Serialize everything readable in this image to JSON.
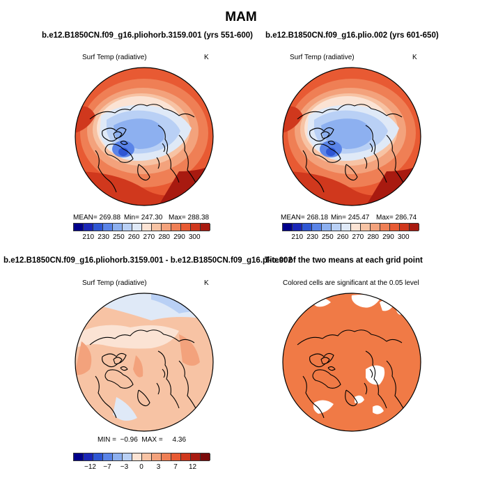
{
  "main_title": "MAM",
  "palette": {
    "cold": [
      "#00008b",
      "#1a26b8",
      "#2e56d4",
      "#5a84e8",
      "#8db0f0",
      "#b9d0f5",
      "#dfe9f7"
    ],
    "warm": [
      "#fbe3d4",
      "#f7c3a4",
      "#f3a27c",
      "#ef7f55",
      "#e85a33",
      "#d0381d",
      "#a81a10",
      "#7a0a0a"
    ],
    "ocean_warm": "#f18459",
    "signif": "#f07a46"
  },
  "chart_data": [
    {
      "type": "heatmap",
      "title": "b.e12.B1850CN.f09_g16.pliohorb.3159.001 (yrs 551-600)",
      "variable": "Surf Temp (radiative)",
      "units": "K",
      "stats": {
        "mean": "MEAN= 269.88",
        "min": "Min= 247.30",
        "max": "Max= 288.38"
      },
      "mean": 269.88,
      "min": 247.3,
      "max": 288.38,
      "colorbar_ticks": [
        "210",
        "230",
        "250",
        "260",
        "270",
        "280",
        "290",
        "300"
      ]
    },
    {
      "type": "heatmap",
      "title": "b.e12.B1850CN.f09_g16.plio.002 (yrs 601-650)",
      "variable": "Surf Temp (radiative)",
      "units": "K",
      "stats": {
        "mean": "MEAN= 268.18",
        "min": "Min= 245.47",
        "max": "Max= 286.74"
      },
      "mean": 268.18,
      "min": 245.47,
      "max": 286.74,
      "colorbar_ticks": [
        "210",
        "230",
        "250",
        "260",
        "270",
        "280",
        "290",
        "300"
      ]
    },
    {
      "type": "heatmap",
      "title": "b.e12.B1850CN.f09_g16.pliohorb.3159.001 - b.e12.B1850CN.f09_g16.plio.002",
      "variable": "Surf Temp (radiative)",
      "units": "K",
      "stats": {
        "minmax": "MIN =  −0.96  MAX =     4.36"
      },
      "min": -0.96,
      "max": 4.36,
      "colorbar_ticks": [
        "−12",
        "−7",
        "−3",
        "0",
        "3",
        "7",
        "12"
      ]
    },
    {
      "type": "heatmap",
      "title": "T-test of the two means at each grid point",
      "subtitle": "Colored cells are significant at the 0.05 level"
    }
  ]
}
